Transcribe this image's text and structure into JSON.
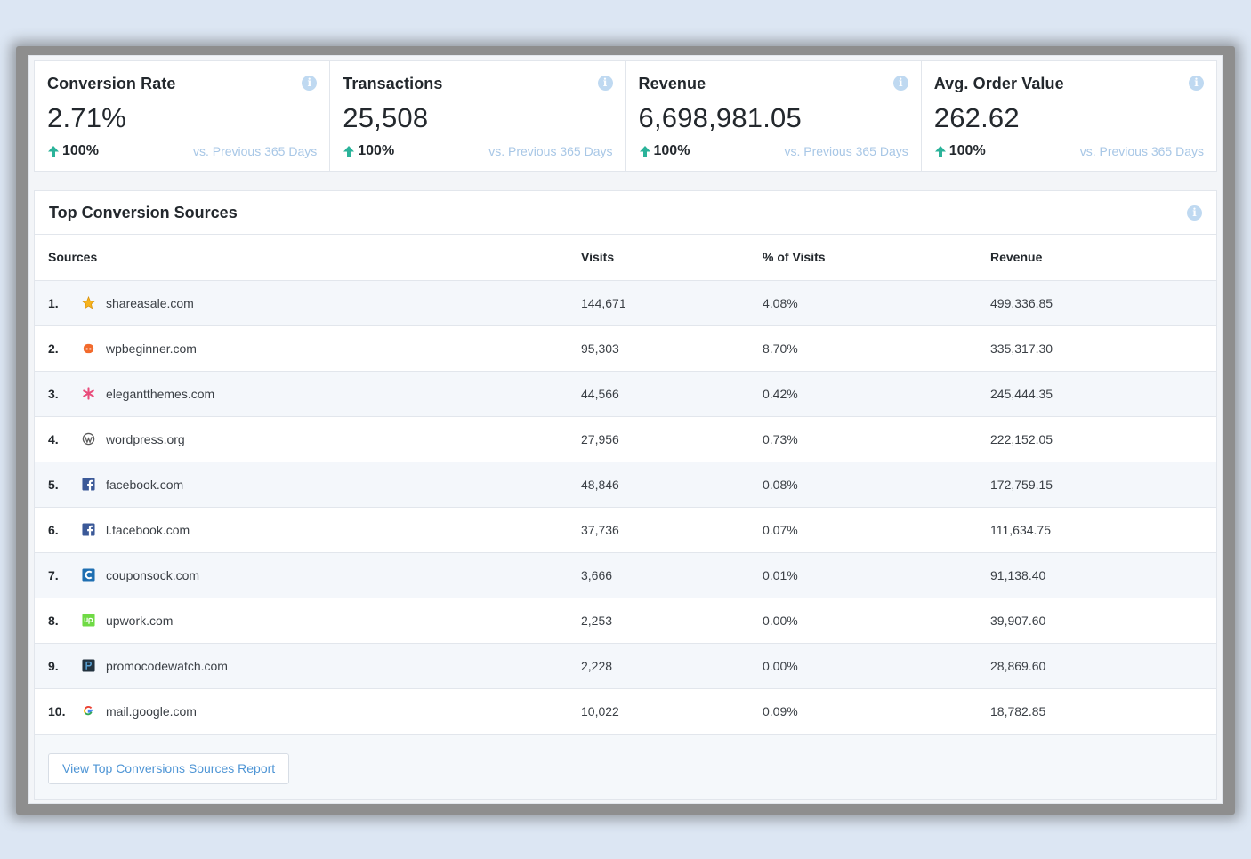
{
  "stats": [
    {
      "title": "Conversion Rate",
      "value": "2.71%",
      "change": "100%",
      "compare": "vs. Previous 365 Days"
    },
    {
      "title": "Transactions",
      "value": "25,508",
      "change": "100%",
      "compare": "vs. Previous 365 Days"
    },
    {
      "title": "Revenue",
      "value": "6,698,981.05",
      "change": "100%",
      "compare": "vs. Previous 365 Days"
    },
    {
      "title": "Avg. Order Value",
      "value": "262.62",
      "change": "100%",
      "compare": "vs. Previous 365 Days"
    }
  ],
  "colors": {
    "up_arrow": "#2bb39a",
    "info_icon": "#bfd9f1",
    "link": "#4e95d5"
  },
  "sources": {
    "title": "Top Conversion Sources",
    "columns": {
      "sources": "Sources",
      "visits": "Visits",
      "pct": "% of Visits",
      "revenue": "Revenue"
    },
    "rows": [
      {
        "rank": "1.",
        "icon": "star-favicon",
        "source": "shareasale.com",
        "visits": "144,671",
        "pct": "4.08%",
        "revenue": "499,336.85"
      },
      {
        "rank": "2.",
        "icon": "wpbeginner-favicon",
        "source": "wpbeginner.com",
        "visits": "95,303",
        "pct": "8.70%",
        "revenue": "335,317.30"
      },
      {
        "rank": "3.",
        "icon": "asterisk-favicon",
        "source": "elegantthemes.com",
        "visits": "44,566",
        "pct": "0.42%",
        "revenue": "245,444.35"
      },
      {
        "rank": "4.",
        "icon": "wordpress-favicon",
        "source": "wordpress.org",
        "visits": "27,956",
        "pct": "0.73%",
        "revenue": "222,152.05"
      },
      {
        "rank": "5.",
        "icon": "facebook-favicon",
        "source": "facebook.com",
        "visits": "48,846",
        "pct": "0.08%",
        "revenue": "172,759.15"
      },
      {
        "rank": "6.",
        "icon": "facebook-favicon",
        "source": "l.facebook.com",
        "visits": "37,736",
        "pct": "0.07%",
        "revenue": "111,634.75"
      },
      {
        "rank": "7.",
        "icon": "couponsock-favicon",
        "source": "couponsock.com",
        "visits": "3,666",
        "pct": "0.01%",
        "revenue": "91,138.40"
      },
      {
        "rank": "8.",
        "icon": "upwork-favicon",
        "source": "upwork.com",
        "visits": "2,253",
        "pct": "0.00%",
        "revenue": "39,907.60"
      },
      {
        "rank": "9.",
        "icon": "promocodewatch-favicon",
        "source": "promocodewatch.com",
        "visits": "2,228",
        "pct": "0.00%",
        "revenue": "28,869.60"
      },
      {
        "rank": "10.",
        "icon": "google-favicon",
        "source": "mail.google.com",
        "visits": "10,022",
        "pct": "0.09%",
        "revenue": "18,782.85"
      }
    ],
    "report_button": "View Top Conversions Sources Report"
  }
}
